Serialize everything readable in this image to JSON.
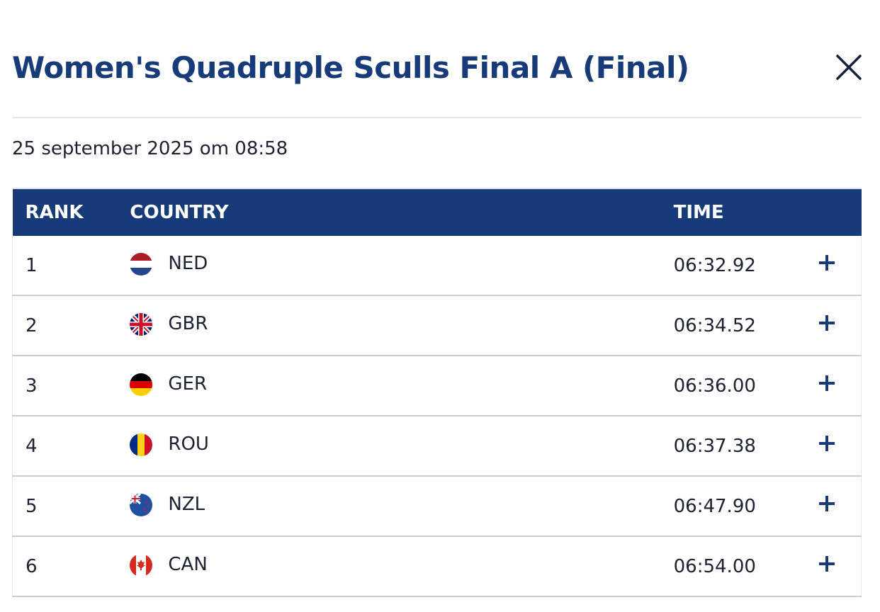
{
  "modal": {
    "title": "Women's Quadruple Sculls Final A (Final)",
    "date": "25 september 2025 om 08:58",
    "close_icon": "close-icon"
  },
  "table": {
    "headers": {
      "rank": "RANK",
      "country": "COUNTRY",
      "time": "TIME"
    },
    "rows": [
      {
        "rank": "1",
        "country": "NED",
        "flag": "flag-netherlands-icon",
        "time": "06:32.92",
        "expand_icon": "plus-icon"
      },
      {
        "rank": "2",
        "country": "GBR",
        "flag": "flag-great-britain-icon",
        "time": "06:34.52",
        "expand_icon": "plus-icon"
      },
      {
        "rank": "3",
        "country": "GER",
        "flag": "flag-germany-icon",
        "time": "06:36.00",
        "expand_icon": "plus-icon"
      },
      {
        "rank": "4",
        "country": "ROU",
        "flag": "flag-romania-icon",
        "time": "06:37.38",
        "expand_icon": "plus-icon"
      },
      {
        "rank": "5",
        "country": "NZL",
        "flag": "flag-new-zealand-icon",
        "time": "06:47.90",
        "expand_icon": "plus-icon"
      },
      {
        "rank": "6",
        "country": "CAN",
        "flag": "flag-canada-icon",
        "time": "06:54.00",
        "expand_icon": "plus-icon"
      }
    ]
  },
  "colors": {
    "brand_navy": "#173a78",
    "text_dark": "#1d2233",
    "row_border": "#c9ced6"
  }
}
